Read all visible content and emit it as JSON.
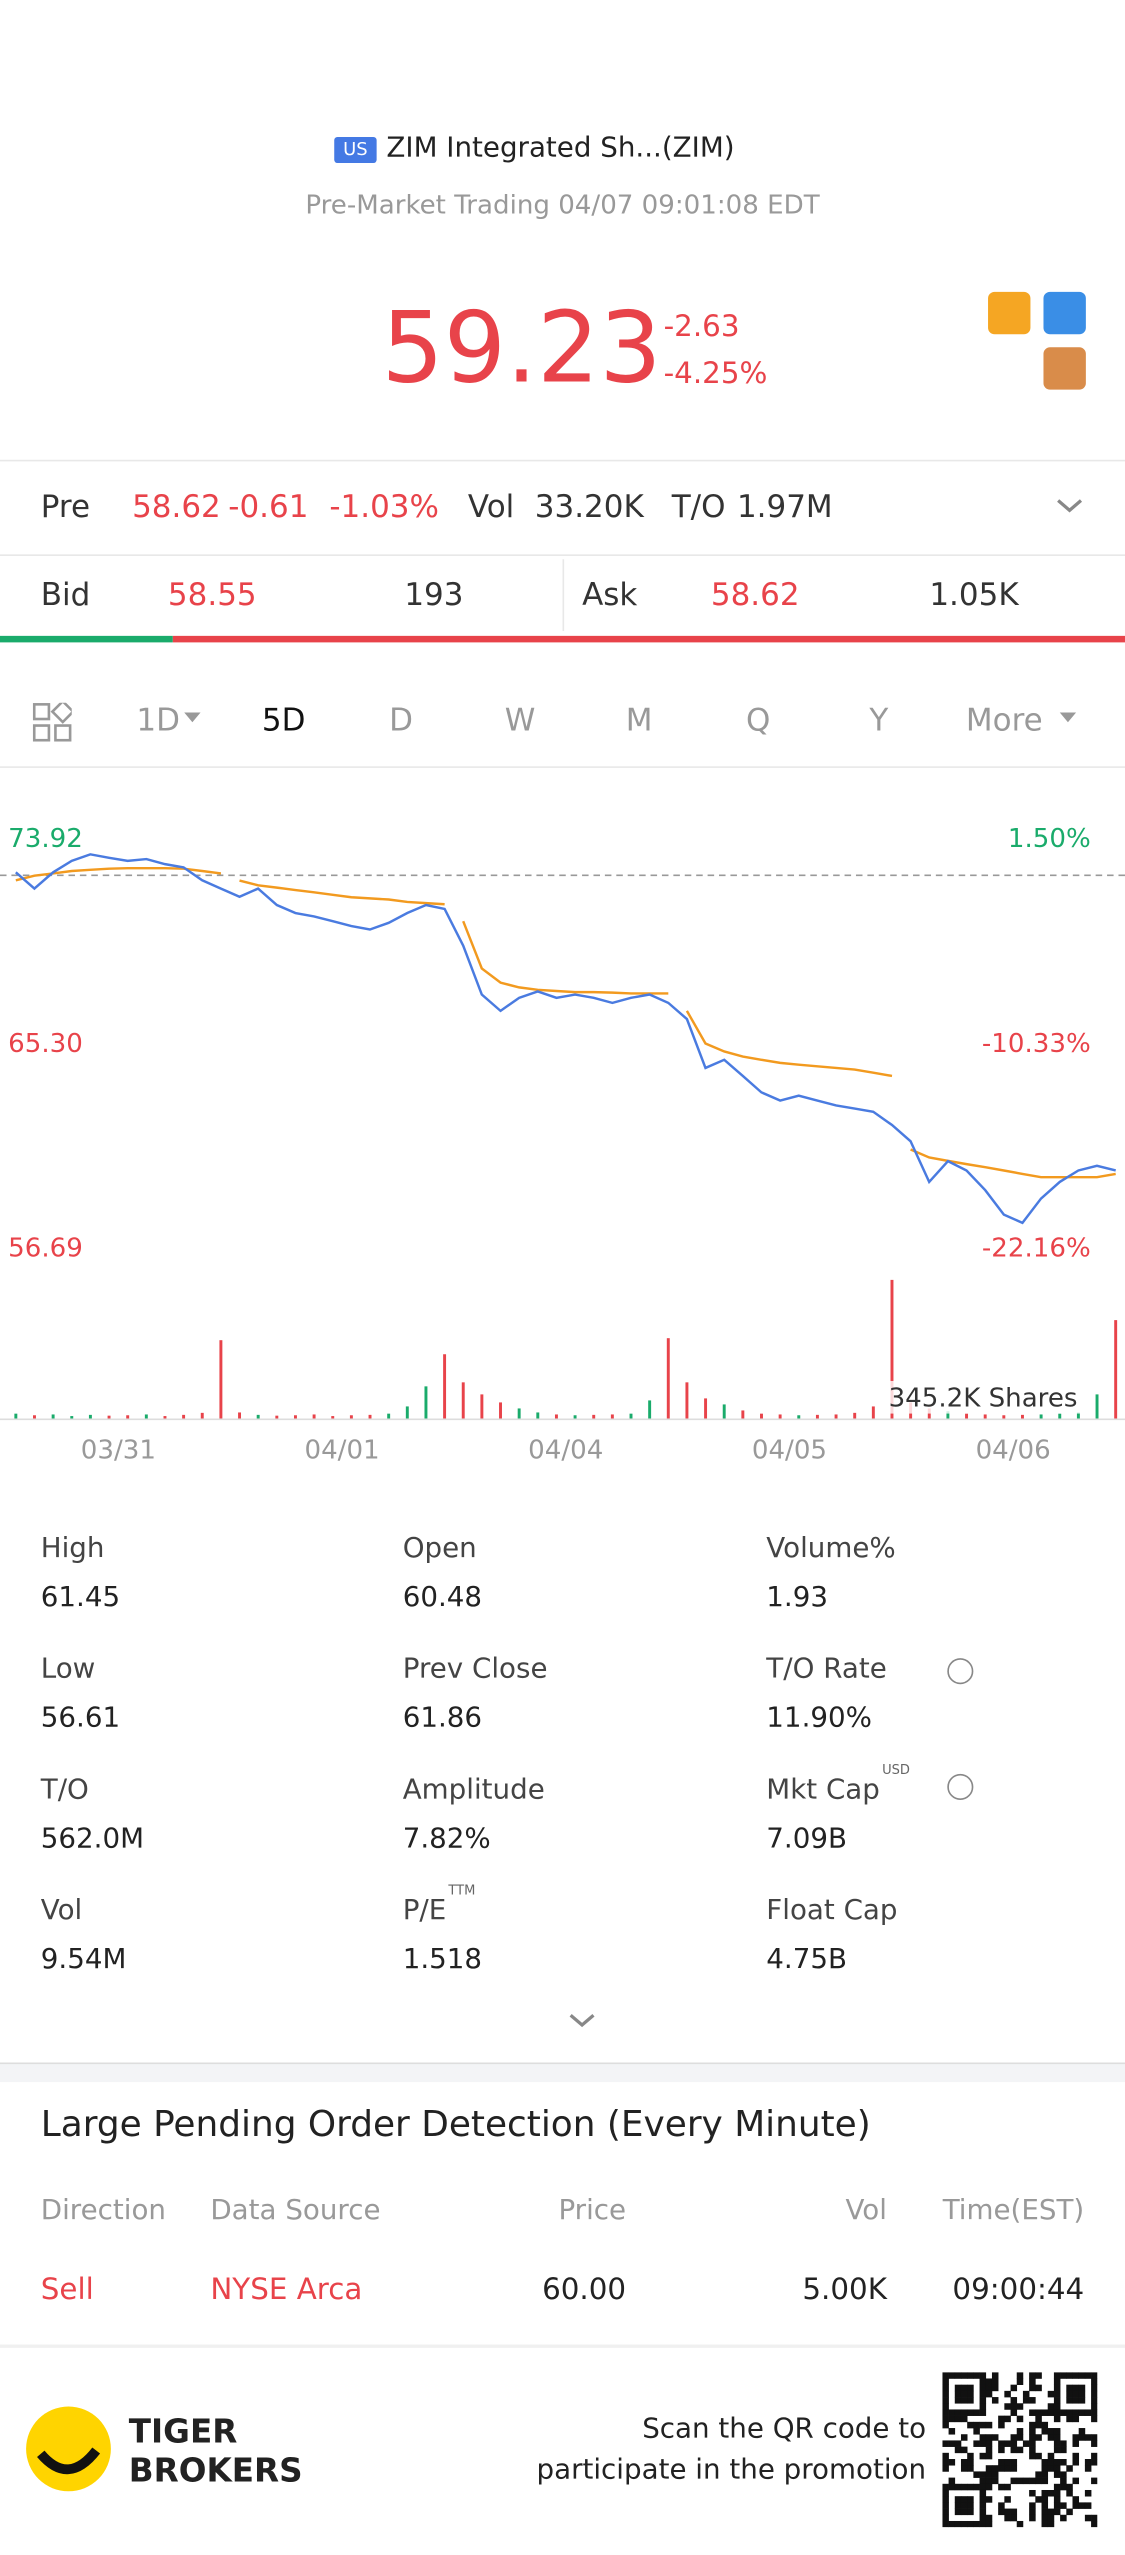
{
  "header": {
    "market_badge": "US",
    "title": "ZIM Integrated Sh...(ZIM)",
    "status": "Pre-Market Trading 04/07 09:01:08 EDT"
  },
  "quote": {
    "price": "59.23",
    "change": "-2.63",
    "change_pct": "-4.25%"
  },
  "premarket": {
    "label": "Pre",
    "price": "58.62",
    "change": "-0.61",
    "change_pct": "-1.03%",
    "vol_label": "Vol",
    "vol": "33.20K",
    "to_label": "T/O",
    "to": "1.97M"
  },
  "bidask": {
    "bid_label": "Bid",
    "bid": "58.55",
    "bid_size": "193",
    "ask_label": "Ask",
    "ask": "58.62",
    "ask_size": "1.05K"
  },
  "tabs": {
    "items": [
      "1D",
      "5D",
      "D",
      "W",
      "M",
      "Q",
      "Y",
      "More"
    ],
    "active": 1
  },
  "chart_data": {
    "type": "line",
    "days": [
      "03/31",
      "04/01",
      "04/04",
      "04/05",
      "04/06"
    ],
    "points_per_day": 12,
    "ylim": [
      56.69,
      73.92
    ],
    "yticks": [
      73.92,
      {
        "value": 65.3,
        "label": "65.30"
      },
      56.69
    ],
    "y2lim": [
      -22.16,
      1.5
    ],
    "y2ticks": [
      {
        "value": 1.5,
        "label": "1.50%"
      },
      {
        "value": -10.33,
        "label": "-10.33%"
      },
      {
        "value": -22.16,
        "label": "-22.16%"
      }
    ],
    "baseline": 72.83,
    "up_color": "#1aab6b",
    "down_color": "#e8434a",
    "series": [
      {
        "name": "Price",
        "color": "#4a7be0",
        "values": [
          72.55,
          71.86,
          72.55,
          73.03,
          73.3,
          73.16,
          73.03,
          73.1,
          72.89,
          72.75,
          72.21,
          71.86,
          71.52,
          71.86,
          71.17,
          70.83,
          70.69,
          70.49,
          70.28,
          70.14,
          70.42,
          70.83,
          71.17,
          71.0,
          69.46,
          67.4,
          66.71,
          67.26,
          67.53,
          67.26,
          67.4,
          67.26,
          67.05,
          67.26,
          67.4,
          67.05,
          66.37,
          64.31,
          64.65,
          63.97,
          63.28,
          62.94,
          63.14,
          62.94,
          62.73,
          62.6,
          62.46,
          61.91,
          61.22,
          59.51,
          60.38,
          59.99,
          59.16,
          58.13,
          57.79,
          58.81,
          59.51,
          59.99,
          60.19,
          59.99
        ]
      },
      {
        "name": "Average",
        "color": "#f29a1f",
        "values": [
          72.21,
          72.4,
          72.5,
          72.6,
          72.65,
          72.7,
          72.72,
          72.72,
          72.72,
          72.7,
          72.6,
          72.5,
          72.2,
          72.0,
          71.9,
          71.8,
          71.7,
          71.6,
          71.5,
          71.45,
          71.4,
          71.3,
          71.25,
          71.2,
          70.49,
          68.5,
          67.9,
          67.7,
          67.6,
          67.55,
          67.5,
          67.5,
          67.48,
          67.45,
          67.45,
          67.45,
          66.71,
          65.34,
          65.0,
          64.79,
          64.65,
          64.52,
          64.45,
          64.38,
          64.31,
          64.24,
          64.11,
          63.97,
          60.88,
          60.54,
          60.4,
          60.26,
          60.13,
          59.99,
          59.85,
          59.71,
          59.71,
          59.71,
          59.71,
          59.85
        ]
      }
    ],
    "volume": {
      "label": "345.2K Shares",
      "ylim": [
        0,
        345.2
      ],
      "values": [
        12,
        8,
        10,
        6,
        9,
        7,
        8,
        10,
        6,
        9,
        14,
        195,
        15,
        9,
        7,
        8,
        10,
        6,
        8,
        9,
        12,
        30,
        80,
        160,
        90,
        60,
        40,
        25,
        15,
        10,
        8,
        9,
        10,
        12,
        45,
        200,
        90,
        50,
        35,
        20,
        12,
        10,
        8,
        9,
        10,
        14,
        30,
        345.2,
        40,
        25,
        18,
        12,
        10,
        8,
        9,
        10,
        12,
        15,
        60,
        245
      ]
    }
  },
  "stats": [
    {
      "label": "High",
      "value": "61.45"
    },
    {
      "label": "Open",
      "value": "60.48"
    },
    {
      "label": "Volume%",
      "value": "1.93"
    },
    {
      "label": "Low",
      "value": "56.61"
    },
    {
      "label": "Prev Close",
      "value": "61.86"
    },
    {
      "label": "T/O Rate",
      "value": "11.90%"
    },
    {
      "label": "T/O",
      "value": "562.0M"
    },
    {
      "label": "Amplitude",
      "value": "7.82%"
    },
    {
      "label": "Mkt Cap",
      "sup": "USD",
      "value": "7.09B"
    },
    {
      "label": "Vol",
      "value": "9.54M"
    },
    {
      "label": "P/E",
      "sup": "TTM",
      "value": "1.518"
    },
    {
      "label": "Float Cap",
      "value": "4.75B"
    }
  ],
  "orders": {
    "title": "Large Pending Order Detection (Every Minute)",
    "headers": [
      "Direction",
      "Data Source",
      "Price",
      "Vol",
      "Time(EST)"
    ],
    "rows": [
      [
        "Sell",
        "NYSE Arca",
        "60.00",
        "5.00K",
        "09:00:44"
      ]
    ]
  },
  "footer": {
    "brand": [
      "TIGER",
      "BROKERS"
    ],
    "promo": [
      "Scan the QR code to",
      "participate in the promotion"
    ]
  }
}
